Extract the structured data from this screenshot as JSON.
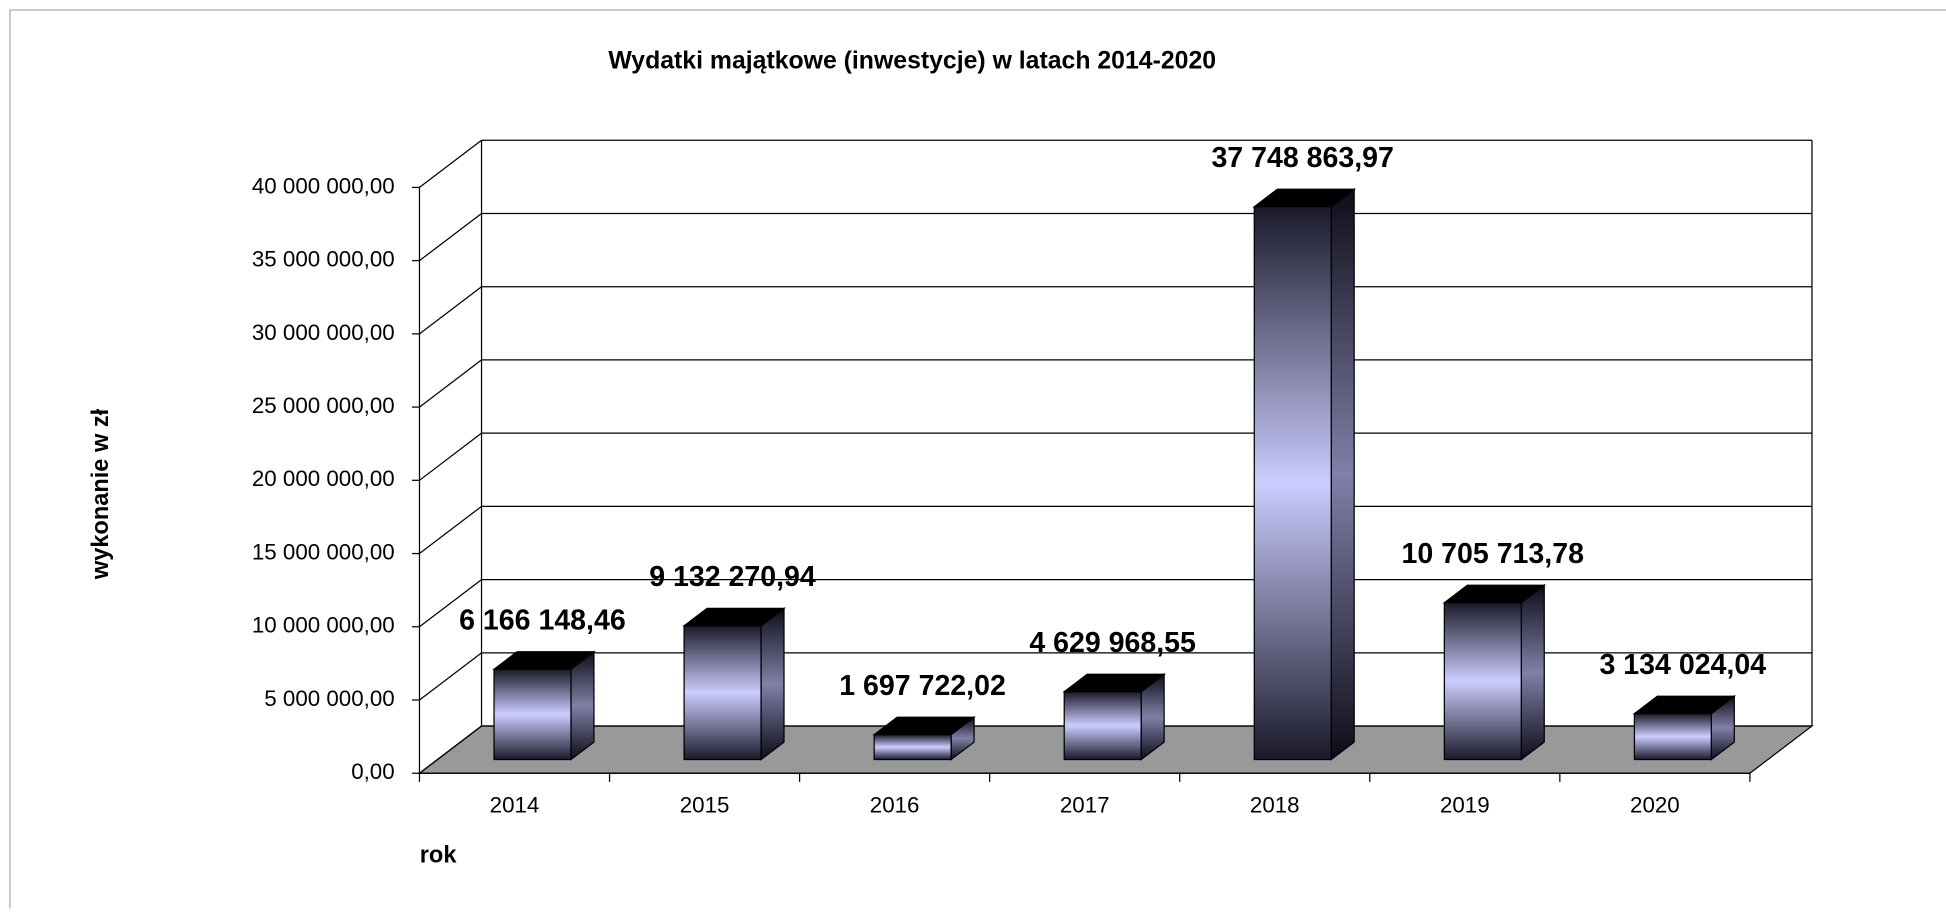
{
  "chart_data": {
    "type": "bar3d",
    "title": "Wydatki majątkowe (inwestycje) w latach 2014-2020",
    "y_label": "wykonanie w zł",
    "x_label": "rok",
    "categories": [
      "2014",
      "2015",
      "2016",
      "2017",
      "2018",
      "2019",
      "2020"
    ],
    "values": [
      6166148.46,
      9132270.94,
      1697722.02,
      4629968.55,
      37748863.97,
      10705713.78,
      3134024.04
    ],
    "value_labels": [
      "6 166 148,46",
      "9 132 270,94",
      "1 697 722,02",
      "4 629 968,55",
      "37 748 863,97",
      "10 705 713,78",
      "3 134 024,04"
    ],
    "color": "#ccccff",
    "ylim": [
      0,
      40000000
    ],
    "yticks": [
      {
        "value": 0,
        "label": "0,00"
      },
      {
        "value": 5000000,
        "label": "5 000 000,00"
      },
      {
        "value": 10000000,
        "label": "10 000 000,00"
      },
      {
        "value": 15000000,
        "label": "15 000 000,00"
      },
      {
        "value": 20000000,
        "label": "20 000 000,00"
      },
      {
        "value": 25000000,
        "label": "25 000 000,00"
      },
      {
        "value": 30000000,
        "label": "30 000 000,00"
      },
      {
        "value": 35000000,
        "label": "35 000 000,00"
      },
      {
        "value": 40000000,
        "label": "40 000 000,00"
      }
    ],
    "grid": true
  }
}
